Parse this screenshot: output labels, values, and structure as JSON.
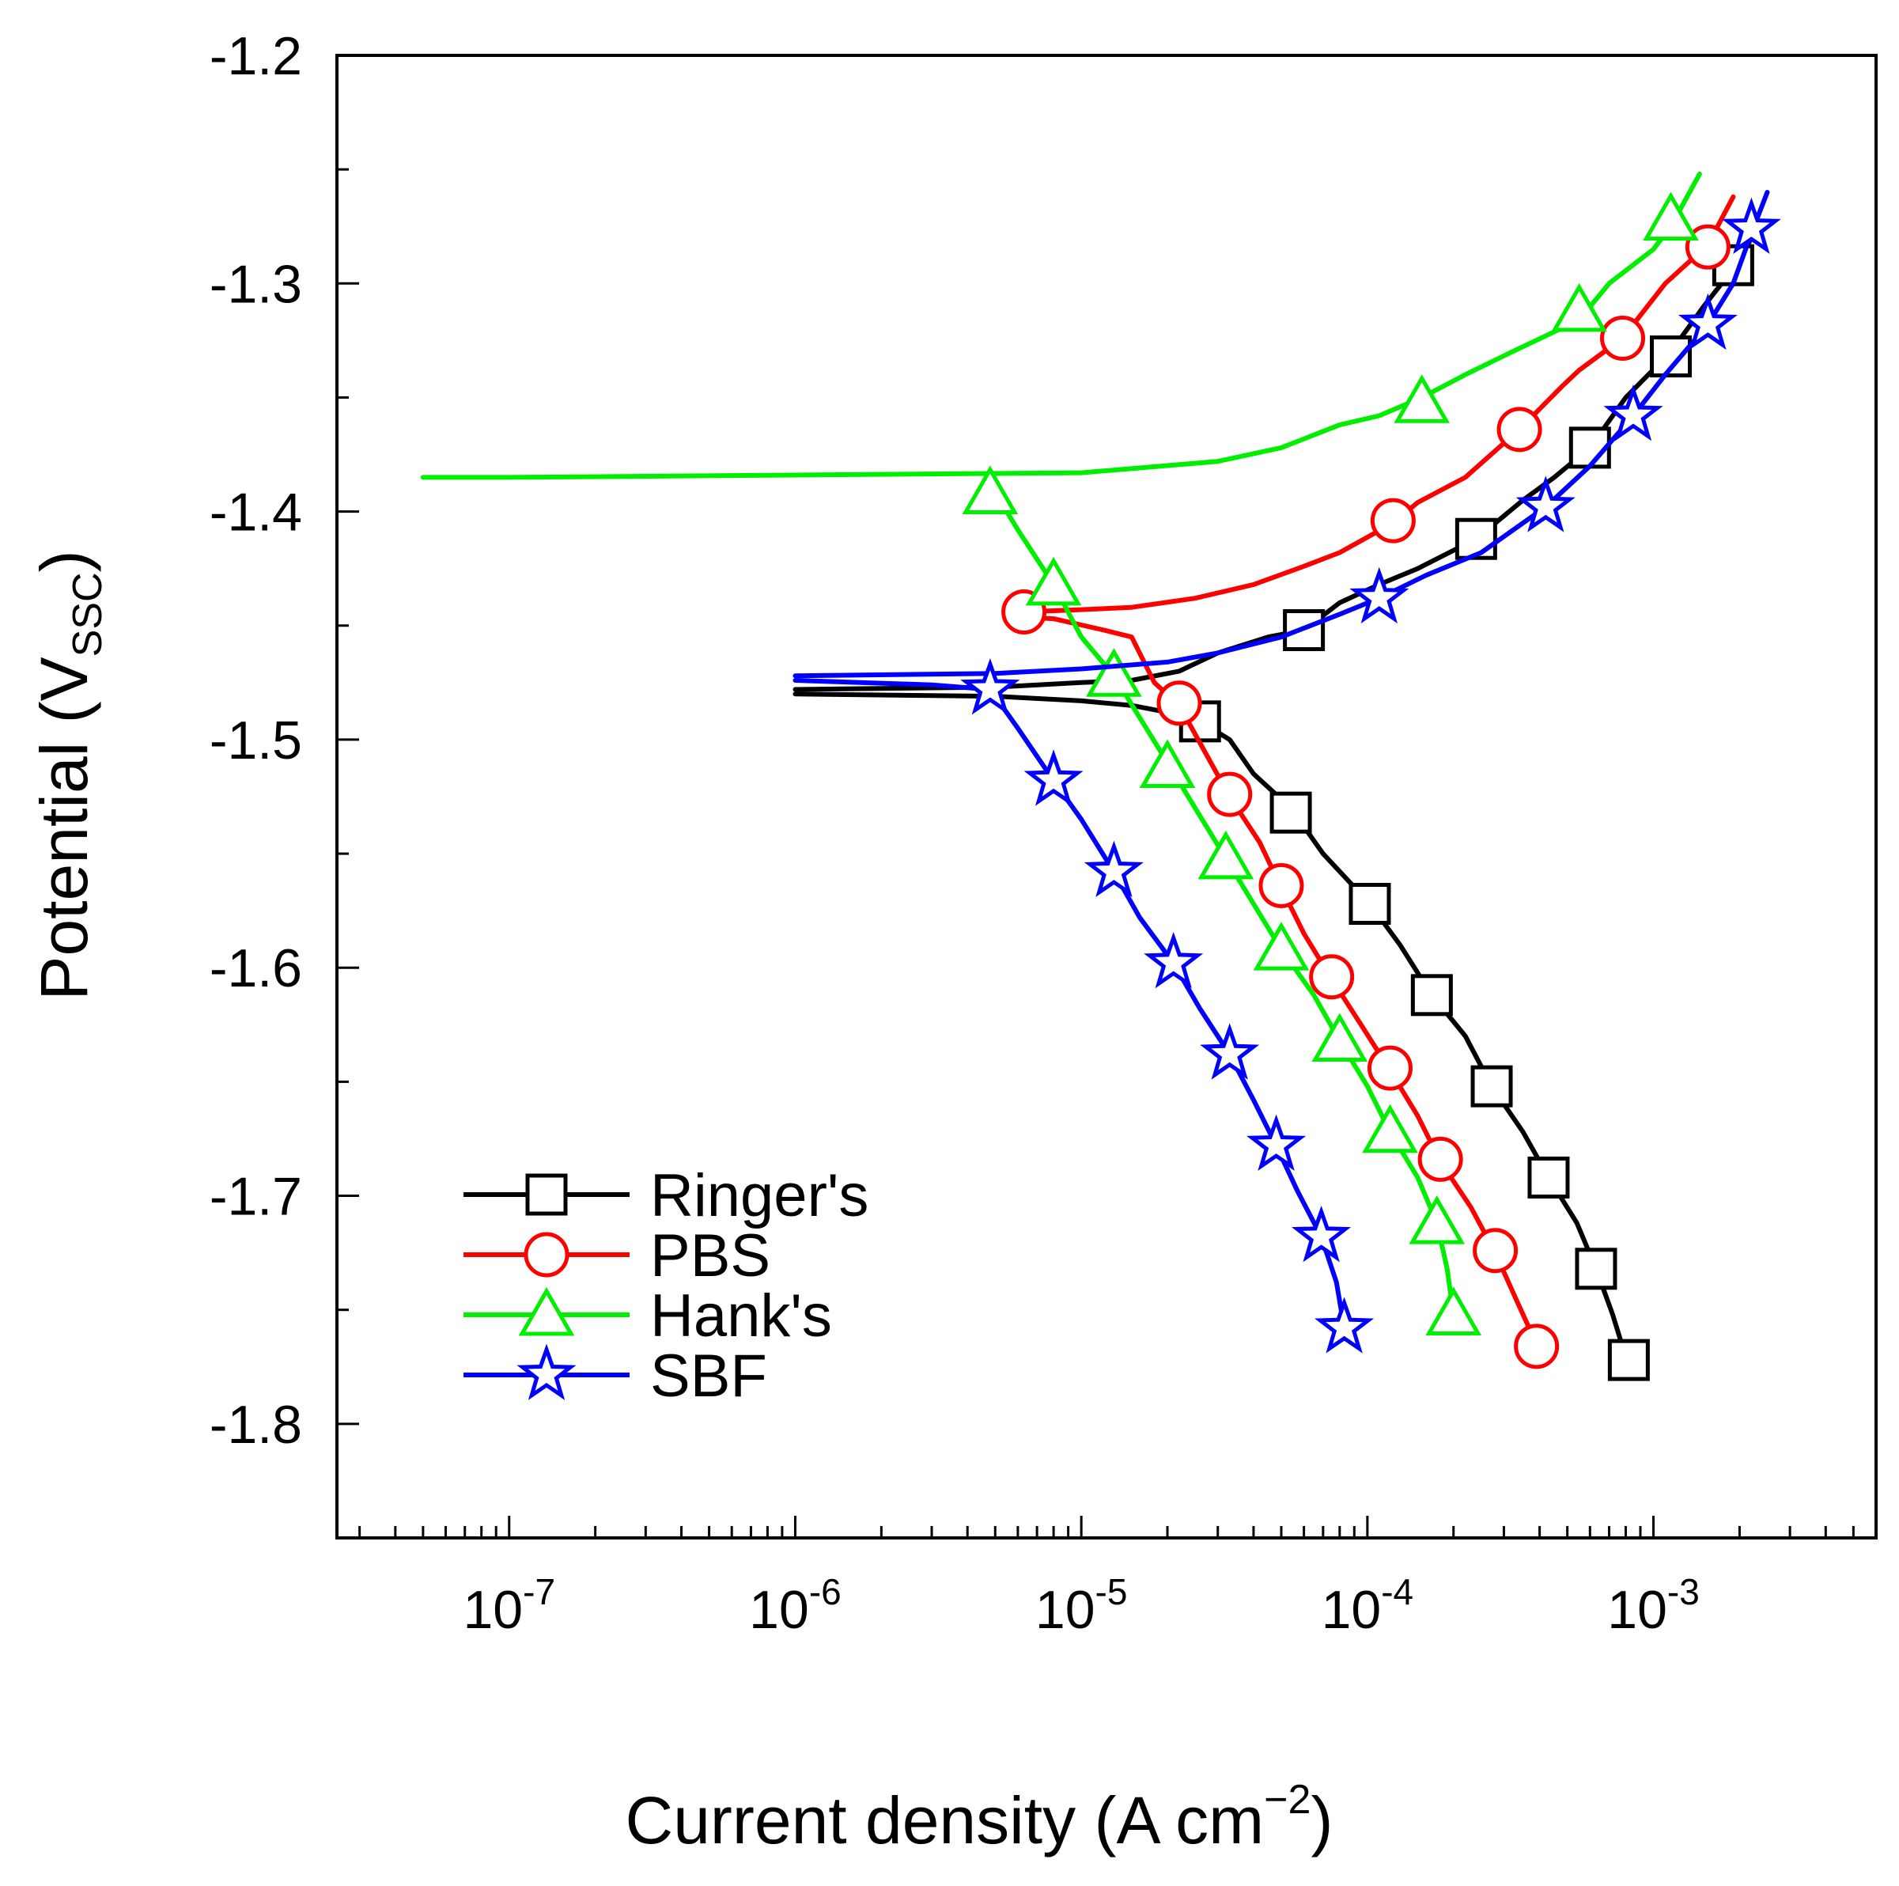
{
  "chart_data": {
    "type": "line",
    "x_scale": "log",
    "xlim": [
      2.5e-08,
      0.006
    ],
    "ylim": [
      -1.85,
      -1.2
    ],
    "xlabel": {
      "prefix": "Current density  (A cm",
      "sup": "−2",
      "suffix": ")"
    },
    "ylabel": {
      "prefix": "Potential  (V",
      "sub": "SSC",
      "suffix": ")"
    },
    "x_ticks": [
      {
        "value": 1e-07,
        "base": "10",
        "exp": "-7"
      },
      {
        "value": 1e-06,
        "base": "10",
        "exp": "-6"
      },
      {
        "value": 1e-05,
        "base": "10",
        "exp": "-5"
      },
      {
        "value": 0.0001,
        "base": "10",
        "exp": "-4"
      },
      {
        "value": 0.001,
        "base": "10",
        "exp": "-3"
      }
    ],
    "y_ticks": [
      {
        "value": -1.2,
        "label": "-1.2"
      },
      {
        "value": -1.3,
        "label": "-1.3"
      },
      {
        "value": -1.4,
        "label": "-1.4"
      },
      {
        "value": -1.5,
        "label": "-1.5"
      },
      {
        "value": -1.6,
        "label": "-1.6"
      },
      {
        "value": -1.7,
        "label": "-1.7"
      },
      {
        "value": -1.8,
        "label": "-1.8"
      }
    ],
    "legend_position": "bottom-left",
    "series": [
      {
        "name": "Ringer's",
        "color": "#000000",
        "marker": "square",
        "curve": [
          [
            1e-06,
            -1.48
          ],
          [
            5e-06,
            -1.481
          ],
          [
            1e-05,
            -1.483
          ],
          [
            1.5e-05,
            -1.485
          ],
          [
            2e-05,
            -1.488
          ],
          [
            2.6e-05,
            -1.492
          ],
          [
            3.3e-05,
            -1.5
          ],
          [
            4e-05,
            -1.515
          ],
          [
            5.4e-05,
            -1.53
          ],
          [
            7e-05,
            -1.55
          ],
          [
            0.000102,
            -1.572
          ],
          [
            0.00013,
            -1.59
          ],
          [
            0.000168,
            -1.612
          ],
          [
            0.00022,
            -1.63
          ],
          [
            0.000272,
            -1.652
          ],
          [
            0.00035,
            -1.672
          ],
          [
            0.00043,
            -1.692
          ],
          [
            0.00054,
            -1.712
          ],
          [
            0.00063,
            -1.732
          ],
          [
            0.00072,
            -1.752
          ],
          [
            0.00082,
            -1.775
          ]
        ],
        "curve_upper": [
          [
            1e-06,
            -1.478
          ],
          [
            5e-06,
            -1.477
          ],
          [
            1e-05,
            -1.475
          ],
          [
            1.5e-05,
            -1.474
          ],
          [
            2.2e-05,
            -1.47
          ],
          [
            3e-05,
            -1.462
          ],
          [
            4.5e-05,
            -1.455
          ],
          [
            6e-05,
            -1.452
          ],
          [
            8e-05,
            -1.44
          ],
          [
            0.00011,
            -1.432
          ],
          [
            0.00015,
            -1.425
          ],
          [
            0.00024,
            -1.412
          ],
          [
            0.00035,
            -1.395
          ],
          [
            0.00045,
            -1.385
          ],
          [
            0.0006,
            -1.372
          ],
          [
            0.0008,
            -1.35
          ],
          [
            0.00115,
            -1.33
          ],
          [
            0.0015,
            -1.31
          ],
          [
            0.002,
            -1.29
          ],
          [
            0.0022,
            -1.28
          ]
        ],
        "markers": [
          [
            2.6e-05,
            -1.492
          ],
          [
            5.4e-05,
            -1.532
          ],
          [
            0.000102,
            -1.572
          ],
          [
            0.000168,
            -1.612
          ],
          [
            0.000272,
            -1.652
          ],
          [
            0.00043,
            -1.692
          ],
          [
            0.00063,
            -1.732
          ],
          [
            0.00082,
            -1.772
          ],
          [
            6e-05,
            -1.452
          ],
          [
            0.00024,
            -1.412
          ],
          [
            0.0006,
            -1.372
          ],
          [
            0.00115,
            -1.332
          ],
          [
            0.0019,
            -1.292
          ]
        ]
      },
      {
        "name": "PBS",
        "color": "#ff0000",
        "marker": "circle",
        "curve": [
          [
            5.5e-06,
            -1.446
          ],
          [
            8e-06,
            -1.447
          ],
          [
            1.2e-05,
            -1.452
          ],
          [
            1.5e-05,
            -1.455
          ],
          [
            1.8e-05,
            -1.475
          ],
          [
            2.2e-05,
            -1.485
          ],
          [
            3.3e-05,
            -1.525
          ],
          [
            4.2e-05,
            -1.545
          ],
          [
            5e-05,
            -1.565
          ],
          [
            6e-05,
            -1.585
          ],
          [
            7.5e-05,
            -1.605
          ],
          [
            9.5e-05,
            -1.625
          ],
          [
            0.00012,
            -1.645
          ],
          [
            0.00015,
            -1.665
          ],
          [
            0.00018,
            -1.685
          ],
          [
            0.00023,
            -1.705
          ],
          [
            0.00028,
            -1.725
          ],
          [
            0.00033,
            -1.745
          ],
          [
            0.00039,
            -1.765
          ]
        ],
        "curve_upper": [
          [
            6.3e-06,
            -1.444
          ],
          [
            1e-05,
            -1.443
          ],
          [
            1.5e-05,
            -1.442
          ],
          [
            2.5e-05,
            -1.438
          ],
          [
            4e-05,
            -1.432
          ],
          [
            6e-05,
            -1.424
          ],
          [
            8e-05,
            -1.418
          ],
          [
            0.000123,
            -1.405
          ],
          [
            0.00015,
            -1.396
          ],
          [
            0.00022,
            -1.385
          ],
          [
            0.00034,
            -1.364
          ],
          [
            0.00048,
            -1.345
          ],
          [
            0.00055,
            -1.338
          ],
          [
            0.00078,
            -1.324
          ],
          [
            0.0011,
            -1.3
          ],
          [
            0.00155,
            -1.283
          ],
          [
            0.0019,
            -1.262
          ]
        ],
        "markers": [
          [
            6.3e-06,
            -1.444
          ],
          [
            2.2e-05,
            -1.484
          ],
          [
            3.3e-05,
            -1.524
          ],
          [
            5e-05,
            -1.564
          ],
          [
            7.5e-05,
            -1.604
          ],
          [
            0.00012,
            -1.644
          ],
          [
            0.00018,
            -1.684
          ],
          [
            0.00028,
            -1.724
          ],
          [
            0.00039,
            -1.766
          ],
          [
            0.000123,
            -1.404
          ],
          [
            0.00034,
            -1.364
          ],
          [
            0.00078,
            -1.324
          ],
          [
            0.00155,
            -1.284
          ]
        ]
      },
      {
        "name": "Hank's",
        "color": "#00ee00",
        "marker": "triangle",
        "curve": [
          [
            4.8e-06,
            -1.388
          ],
          [
            6e-06,
            -1.408
          ],
          [
            8e-06,
            -1.432
          ],
          [
            1e-05,
            -1.455
          ],
          [
            1.3e-05,
            -1.472
          ],
          [
            2e-05,
            -1.51
          ],
          [
            2.5e-05,
            -1.53
          ],
          [
            3.2e-05,
            -1.552
          ],
          [
            4e-05,
            -1.572
          ],
          [
            5e-05,
            -1.592
          ],
          [
            6.5e-05,
            -1.612
          ],
          [
            8e-05,
            -1.632
          ],
          [
            0.0001,
            -1.652
          ],
          [
            0.00012,
            -1.672
          ],
          [
            0.00015,
            -1.692
          ],
          [
            0.000175,
            -1.712
          ],
          [
            0.00019,
            -1.732
          ],
          [
            0.0002,
            -1.752
          ]
        ],
        "curve_upper": [
          [
            5e-08,
            -1.385
          ],
          [
            1e-07,
            -1.385
          ],
          [
            1e-06,
            -1.384
          ],
          [
            1e-05,
            -1.383
          ],
          [
            3e-05,
            -1.378
          ],
          [
            5e-05,
            -1.372
          ],
          [
            8e-05,
            -1.362
          ],
          [
            0.00011,
            -1.358
          ],
          [
            0.000155,
            -1.35
          ],
          [
            0.00022,
            -1.34
          ],
          [
            0.00032,
            -1.33
          ],
          [
            0.00055,
            -1.316
          ],
          [
            0.0007,
            -1.3
          ],
          [
            0.001,
            -1.285
          ],
          [
            0.00115,
            -1.275
          ],
          [
            0.00145,
            -1.252
          ]
        ],
        "markers": [
          [
            4.8e-06,
            -1.392
          ],
          [
            8e-06,
            -1.432
          ],
          [
            1.3e-05,
            -1.472
          ],
          [
            2e-05,
            -1.512
          ],
          [
            3.2e-05,
            -1.552
          ],
          [
            5e-05,
            -1.592
          ],
          [
            8e-05,
            -1.632
          ],
          [
            0.00012,
            -1.672
          ],
          [
            0.000175,
            -1.712
          ],
          [
            0.0002,
            -1.752
          ],
          [
            0.000155,
            -1.352
          ],
          [
            0.00055,
            -1.312
          ],
          [
            0.00115,
            -1.272
          ]
        ]
      },
      {
        "name": "SBF",
        "color": "#0000ff",
        "marker": "star",
        "curve": [
          [
            1e-06,
            -1.474
          ],
          [
            3e-06,
            -1.476
          ],
          [
            4.8e-06,
            -1.478
          ],
          [
            6e-06,
            -1.495
          ],
          [
            8e-06,
            -1.518
          ],
          [
            1e-05,
            -1.535
          ],
          [
            1.3e-05,
            -1.558
          ],
          [
            1.6e-05,
            -1.578
          ],
          [
            2.1e-05,
            -1.598
          ],
          [
            2.6e-05,
            -1.618
          ],
          [
            3.3e-05,
            -1.638
          ],
          [
            4e-05,
            -1.658
          ],
          [
            4.8e-05,
            -1.678
          ],
          [
            5.7e-05,
            -1.698
          ],
          [
            6.9e-05,
            -1.718
          ],
          [
            7.8e-05,
            -1.738
          ],
          [
            8.3e-05,
            -1.758
          ]
        ],
        "curve_upper": [
          [
            1e-06,
            -1.472
          ],
          [
            5e-06,
            -1.471
          ],
          [
            1e-05,
            -1.469
          ],
          [
            2e-05,
            -1.466
          ],
          [
            3e-05,
            -1.462
          ],
          [
            5e-05,
            -1.455
          ],
          [
            8e-05,
            -1.445
          ],
          [
            0.00011,
            -1.438
          ],
          [
            0.00016,
            -1.428
          ],
          [
            0.00025,
            -1.418
          ],
          [
            0.00042,
            -1.398
          ],
          [
            0.0006,
            -1.38
          ],
          [
            0.00085,
            -1.358
          ],
          [
            0.0011,
            -1.34
          ],
          [
            0.00155,
            -1.318
          ],
          [
            0.0019,
            -1.3
          ],
          [
            0.0022,
            -1.278
          ],
          [
            0.0025,
            -1.26
          ]
        ],
        "markers": [
          [
            4.8e-06,
            -1.478
          ],
          [
            8e-06,
            -1.518
          ],
          [
            1.3e-05,
            -1.558
          ],
          [
            2.1e-05,
            -1.598
          ],
          [
            3.3e-05,
            -1.638
          ],
          [
            4.8e-05,
            -1.678
          ],
          [
            6.9e-05,
            -1.718
          ],
          [
            8.3e-05,
            -1.758
          ],
          [
            0.00011,
            -1.438
          ],
          [
            0.00042,
            -1.398
          ],
          [
            0.00085,
            -1.358
          ],
          [
            0.00155,
            -1.318
          ],
          [
            0.0022,
            -1.276
          ]
        ]
      }
    ]
  }
}
